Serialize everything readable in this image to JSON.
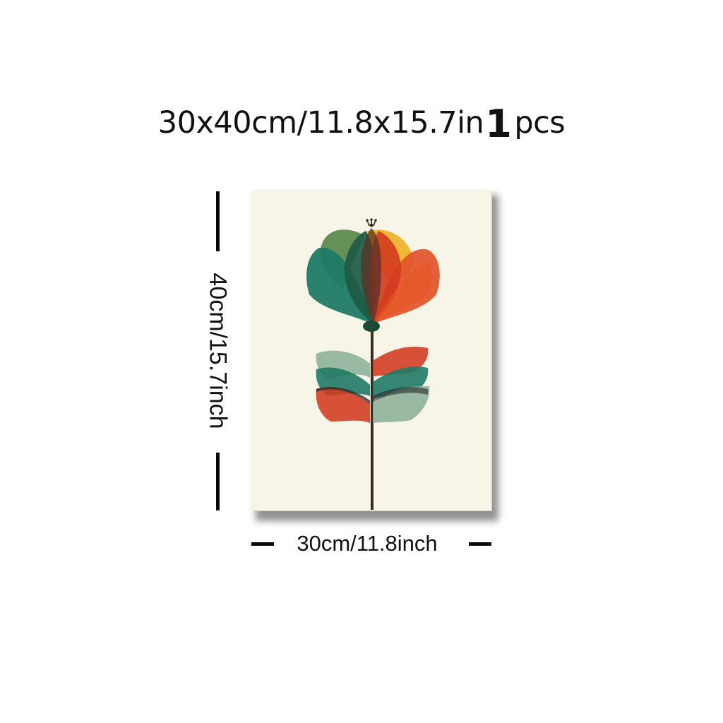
{
  "headline": {
    "size_text": "30x40cm/11.8x15.7in",
    "quantity": "1",
    "unit": "pcs"
  },
  "dimensions": {
    "height_label": "40cm/15.7inch",
    "width_label": "30cm/11.8inch"
  },
  "artwork": {
    "subject": "stylized-flower-icon",
    "colors": {
      "canvas": "#f7f5e8",
      "teal": "#1f7a65",
      "sage": "#8fb39a",
      "olive": "#5d8a4e",
      "orange": "#e0532a",
      "red": "#d23a1f",
      "yellow": "#eeb32b",
      "stem": "#3a2a22"
    }
  }
}
